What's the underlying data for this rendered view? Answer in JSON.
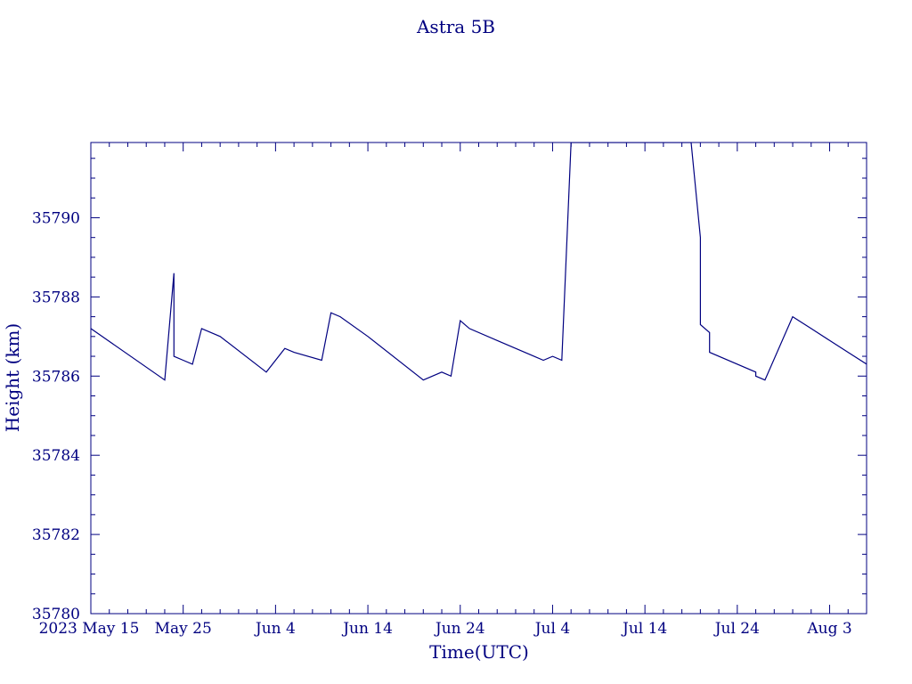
{
  "chart_data": {
    "type": "line",
    "title": "Astra 5B",
    "xlabel": "Time(UTC)",
    "ylabel": "Height (km)",
    "x_start": "2023-05-15",
    "ylim": [
      35780,
      35791.9
    ],
    "y_ticks": [
      {
        "value": 35780,
        "label": "35780"
      },
      {
        "value": 35782,
        "label": "35782"
      },
      {
        "value": 35784,
        "label": "35784"
      },
      {
        "value": 35786,
        "label": "35786"
      },
      {
        "value": 35788,
        "label": "35788"
      },
      {
        "value": 35790,
        "label": "35790"
      }
    ],
    "x_ticks": [
      {
        "date": "2023-05-15",
        "label": "2023 May 15"
      },
      {
        "date": "2023-05-25",
        "label": "May 25"
      },
      {
        "date": "2023-06-04",
        "label": "Jun  4"
      },
      {
        "date": "2023-06-14",
        "label": "Jun 14"
      },
      {
        "date": "2023-06-24",
        "label": "Jun 24"
      },
      {
        "date": "2023-07-04",
        "label": "Jul  4"
      },
      {
        "date": "2023-07-14",
        "label": "Jul 14"
      },
      {
        "date": "2023-07-24",
        "label": "Jul 24"
      },
      {
        "date": "2023-08-03",
        "label": "Aug  3"
      }
    ],
    "xlim": [
      "2023-05-15",
      "2023-08-07"
    ],
    "x": [
      "2023-05-15",
      "2023-05-23",
      "2023-05-23",
      "2023-05-24",
      "2023-05-24",
      "2023-05-24",
      "2023-05-25",
      "2023-05-26",
      "2023-05-27",
      "2023-05-29",
      "2023-06-03",
      "2023-06-05",
      "2023-06-06",
      "2023-06-09",
      "2023-06-10",
      "2023-06-11",
      "2023-06-14",
      "2023-06-20",
      "2023-06-22",
      "2023-06-23",
      "2023-06-24",
      "2023-06-25",
      "2023-06-28",
      "2023-07-02",
      "2023-07-03",
      "2023-07-04",
      "2023-07-05",
      "2023-07-06",
      "2023-07-06",
      "2023-07-19",
      "2023-07-20",
      "2023-07-20",
      "2023-07-21",
      "2023-07-21",
      "2023-07-26",
      "2023-07-26",
      "2023-07-27",
      "2023-07-30",
      "2023-08-01",
      "2023-08-03",
      "2023-08-05",
      "2023-08-07"
    ],
    "y": [
      35787.2,
      35785.9,
      35785.9,
      35788.6,
      35786.8,
      35786.5,
      35786.4,
      35786.3,
      35787.2,
      35787.0,
      35786.1,
      35786.7,
      35786.6,
      35786.4,
      35787.6,
      35787.5,
      35787.0,
      35785.9,
      35786.1,
      35786.0,
      35787.4,
      35787.2,
      35786.9,
      35786.5,
      35786.4,
      35786.5,
      35786.4,
      35791.9,
      35791.9,
      35791.9,
      35789.5,
      35787.3,
      35787.1,
      35786.6,
      35786.1,
      35786.0,
      35785.9,
      35787.5,
      35787.2,
      35786.9,
      35786.6,
      35786.3
    ],
    "grid": false,
    "colors": {
      "line": "#000080",
      "axes": "#000080",
      "text": "#000080"
    }
  }
}
